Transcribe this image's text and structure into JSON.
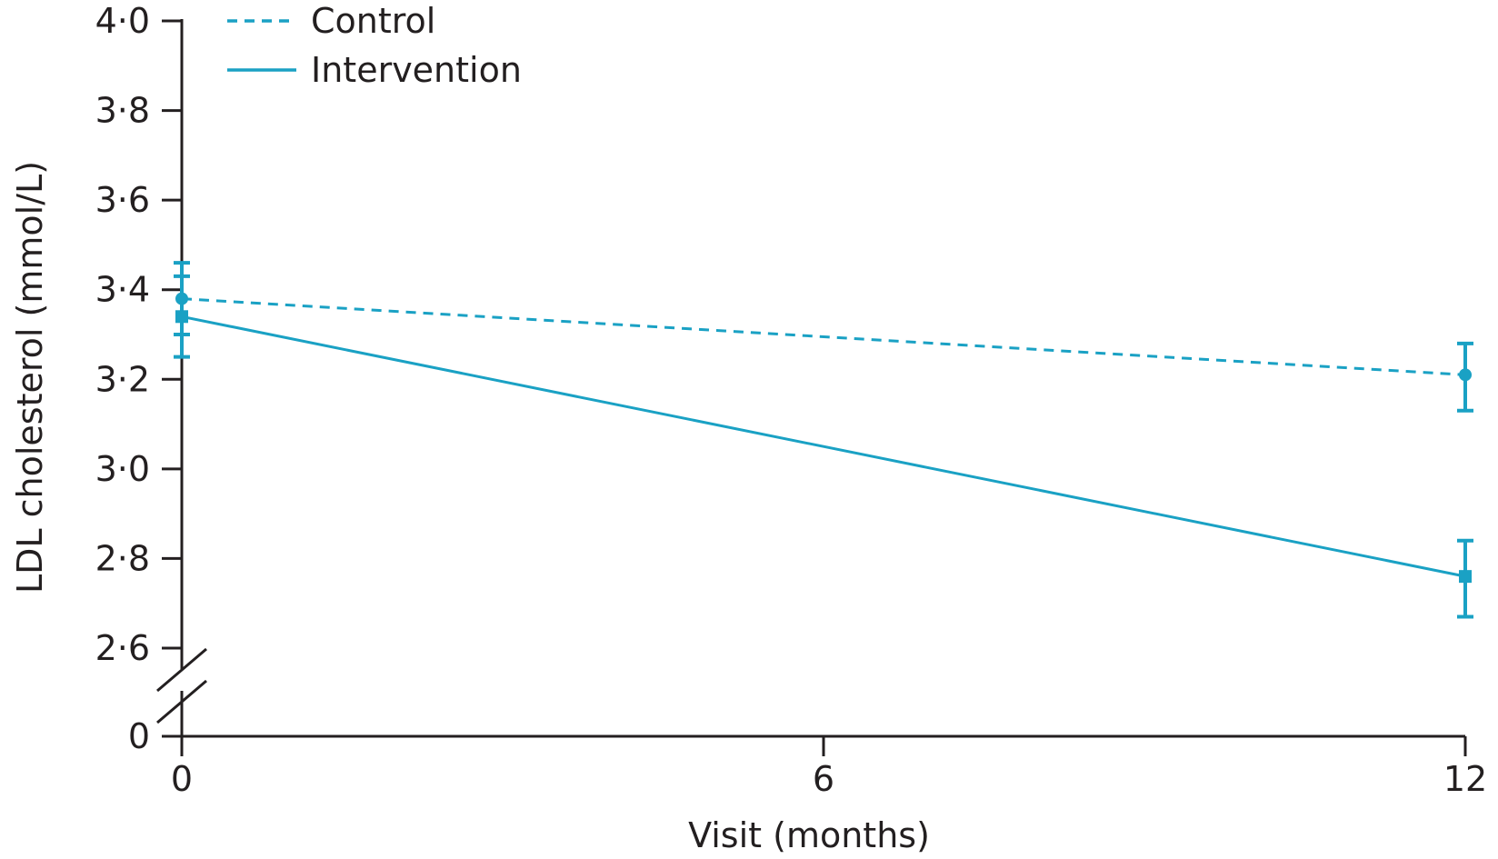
{
  "chart_data": {
    "type": "line",
    "title": "",
    "xlabel": "Visit (months)",
    "ylabel": "LDL cholesterol (mmol/L)",
    "x": [
      0,
      12
    ],
    "x_ticks": [
      0,
      6,
      12
    ],
    "x_tick_labels": [
      "0",
      "6",
      "12"
    ],
    "xlim": [
      0,
      12
    ],
    "y_ticks": [
      4.0,
      3.8,
      3.6,
      3.4,
      3.2,
      3.0,
      2.8,
      2.6
    ],
    "y_tick_labels": [
      "4·0",
      "3·8",
      "3·6",
      "3·4",
      "3·2",
      "3·0",
      "2·8",
      "2·6"
    ],
    "y_zero_label": "0",
    "ylim": [
      2.6,
      4.0
    ],
    "y_axis_break": true,
    "grid": false,
    "legend_position": "top-left",
    "series": [
      {
        "name": "Control",
        "style": "dashed",
        "marker": "circle",
        "color": "#1aa1c4",
        "values": [
          3.38,
          3.21
        ],
        "error_low": [
          3.3,
          3.13
        ],
        "error_high": [
          3.46,
          3.28
        ]
      },
      {
        "name": "Intervention",
        "style": "solid",
        "marker": "square",
        "color": "#1aa1c4",
        "values": [
          3.34,
          2.76
        ],
        "error_low": [
          3.25,
          2.67
        ],
        "error_high": [
          3.43,
          2.84
        ]
      }
    ]
  }
}
